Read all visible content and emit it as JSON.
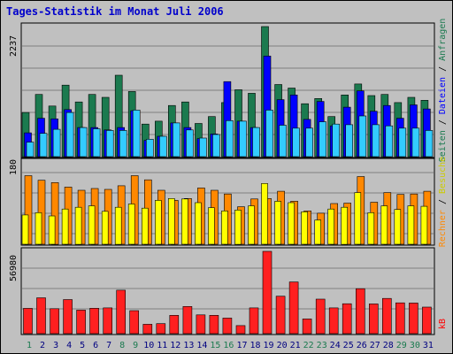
{
  "title": "Tages-Statistik im Monat Juli 2006",
  "panels": {
    "top": {
      "max_label": "2237",
      "legend": [
        {
          "text": "Seiten",
          "color": "#1b7a4f"
        },
        {
          "text": " / ",
          "color": "#000000"
        },
        {
          "text": "Dateien",
          "color": "#0000ff"
        },
        {
          "text": " / ",
          "color": "#000000"
        },
        {
          "text": "Anfragen",
          "color": "#1b7a4f"
        }
      ]
    },
    "middle": {
      "max_label": "180",
      "legend": [
        {
          "text": "Rechner",
          "color": "#ff8800"
        },
        {
          "text": " / ",
          "color": "#000000"
        },
        {
          "text": "Besuche",
          "color": "#cccc00"
        }
      ]
    },
    "bottom": {
      "max_label": "56980",
      "legend": [
        {
          "text": "kB",
          "color": "#ff0000"
        }
      ]
    }
  },
  "colors": {
    "anfragen": "#1b7a4f",
    "dateien": "#0000ff",
    "seiten": "#33ccff",
    "rechner": "#ff8800",
    "besuche": "#ffff00",
    "kb": "#ff2020",
    "weekday_label": "#000080",
    "weekend_label": "#1b7a4f"
  },
  "chart_data": [
    {
      "type": "bar",
      "categories": [
        "1",
        "2",
        "3",
        "4",
        "5",
        "6",
        "7",
        "8",
        "9",
        "10",
        "11",
        "12",
        "13",
        "14",
        "15",
        "16",
        "17",
        "18",
        "19",
        "20",
        "21",
        "22",
        "23",
        "24",
        "25",
        "26",
        "27",
        "28",
        "29",
        "30",
        "31"
      ],
      "weekend_days": [
        "1",
        "8",
        "9",
        "15",
        "16",
        "22",
        "23",
        "29",
        "30"
      ],
      "ylim": [
        0,
        2237
      ],
      "series": [
        {
          "name": "Anfragen",
          "values": [
            760,
            1070,
            870,
            1230,
            940,
            1070,
            1020,
            1400,
            1120,
            560,
            610,
            880,
            940,
            570,
            690,
            930,
            1150,
            1090,
            2237,
            1240,
            1180,
            910,
            1000,
            690,
            1060,
            1250,
            1050,
            1070,
            930,
            1020,
            970
          ]
        },
        {
          "name": "Dateien",
          "values": [
            410,
            660,
            650,
            810,
            500,
            500,
            460,
            500,
            790,
            280,
            350,
            580,
            500,
            310,
            390,
            1290,
            610,
            500,
            1730,
            980,
            1060,
            640,
            950,
            530,
            850,
            1130,
            780,
            880,
            660,
            890,
            820
          ]
        },
        {
          "name": "Seiten",
          "values": [
            250,
            400,
            470,
            760,
            500,
            480,
            450,
            450,
            800,
            300,
            350,
            580,
            460,
            320,
            380,
            620,
            610,
            500,
            800,
            540,
            490,
            490,
            600,
            560,
            550,
            700,
            550,
            530,
            490,
            490,
            450
          ]
        }
      ]
    },
    {
      "type": "bar",
      "categories": [
        "1",
        "2",
        "3",
        "4",
        "5",
        "6",
        "7",
        "8",
        "9",
        "10",
        "11",
        "12",
        "13",
        "14",
        "15",
        "16",
        "17",
        "18",
        "19",
        "20",
        "21",
        "22",
        "23",
        "24",
        "25",
        "26",
        "27",
        "28",
        "29",
        "30",
        "31"
      ],
      "ylim": [
        0,
        180
      ],
      "series": [
        {
          "name": "Rechner",
          "values": [
            150,
            140,
            135,
            125,
            118,
            122,
            120,
            128,
            150,
            141,
            118,
            96,
            100,
            123,
            118,
            110,
            82,
            99,
            100,
            116,
            94,
            73,
            68,
            89,
            90,
            148,
            92,
            113,
            109,
            110,
            116
          ]
        },
        {
          "name": "Besuche",
          "values": [
            64,
            69,
            62,
            77,
            81,
            84,
            72,
            81,
            88,
            79,
            96,
            100,
            99,
            91,
            80,
            73,
            75,
            84,
            133,
            94,
            91,
            71,
            53,
            77,
            81,
            113,
            69,
            84,
            76,
            84,
            83
          ]
        }
      ]
    },
    {
      "type": "bar",
      "categories": [
        "1",
        "2",
        "3",
        "4",
        "5",
        "6",
        "7",
        "8",
        "9",
        "10",
        "11",
        "12",
        "13",
        "14",
        "15",
        "16",
        "17",
        "18",
        "19",
        "20",
        "21",
        "22",
        "23",
        "24",
        "25",
        "26",
        "27",
        "28",
        "29",
        "30",
        "31"
      ],
      "ylim": [
        0,
        56980
      ],
      "series": [
        {
          "name": "kB",
          "values": [
            17500,
            24800,
            17300,
            23600,
            16300,
            17600,
            17800,
            30100,
            15900,
            6500,
            6900,
            12700,
            18800,
            13000,
            12700,
            10800,
            5600,
            17800,
            56980,
            25900,
            35800,
            10200,
            23900,
            17800,
            20700,
            31100,
            20600,
            24400,
            21300,
            21200,
            18400
          ]
        }
      ]
    }
  ]
}
